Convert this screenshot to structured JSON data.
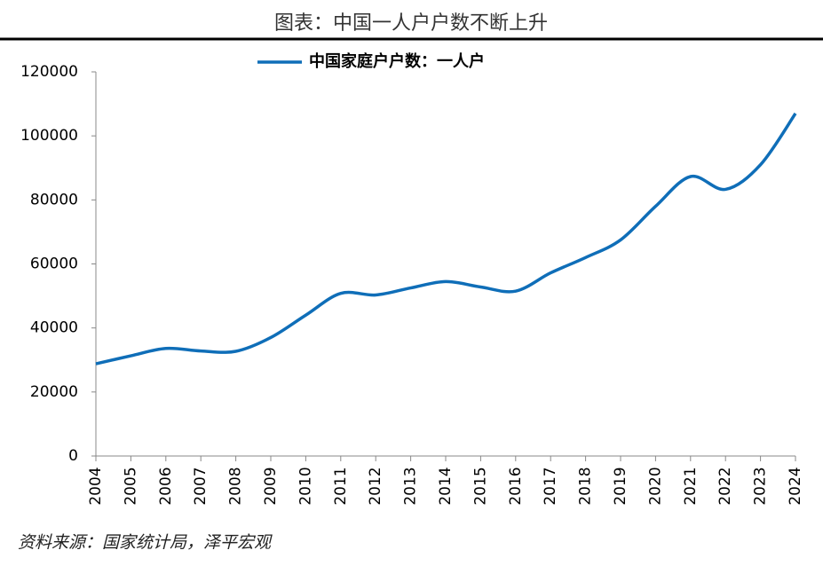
{
  "chart_data": {
    "type": "line",
    "title": "图表：中国一人户户数不断上升",
    "source": "资料来源：国家统计局，泽平宏观",
    "categories": [
      "2004",
      "2005",
      "2006",
      "2007",
      "2008",
      "2009",
      "2010",
      "2011",
      "2012",
      "2013",
      "2014",
      "2015",
      "2016",
      "2017",
      "2018",
      "2019",
      "2020",
      "2021",
      "2022",
      "2023",
      "2024"
    ],
    "series": [
      {
        "name": "中国家庭户户数：一人户",
        "color": "#0f6eb8",
        "values": [
          28800,
          31300,
          33600,
          32800,
          32700,
          37000,
          44000,
          50800,
          50300,
          52500,
          54500,
          52800,
          51500,
          57200,
          62000,
          67500,
          78000,
          87300,
          83300,
          91000,
          107000
        ]
      }
    ],
    "ylim": [
      0,
      120000
    ],
    "yticks": [
      0,
      20000,
      40000,
      60000,
      80000,
      100000,
      120000
    ],
    "grid": false
  }
}
